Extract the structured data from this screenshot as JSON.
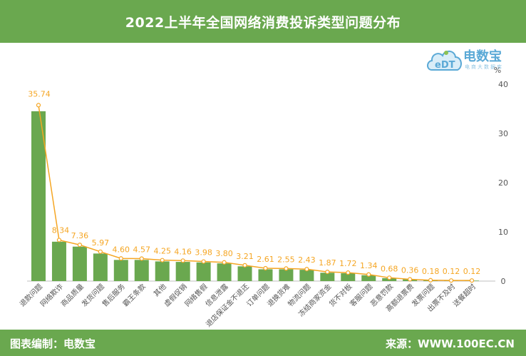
{
  "header": {
    "title": "2022上半年全国网络消费投诉类型问题分布"
  },
  "logo": {
    "name": "电数宝",
    "letters": "eDT",
    "sub": "电商大数据库"
  },
  "footer": {
    "credit": "图表编制：电数宝",
    "source": "来源：WWW.100EC.CN"
  },
  "colors": {
    "bar": "#6aa84f",
    "line": "#f5a623",
    "label": "#f5a623",
    "header": "#6aa84f"
  },
  "chart_data": {
    "type": "bar",
    "title": "2022上半年全国网络消费投诉类型问题分布",
    "unit_label": "%",
    "ylim": [
      0,
      40
    ],
    "yticks": [
      0,
      10,
      20,
      30,
      40
    ],
    "y_axis_side": "right",
    "categories": [
      "退款问题",
      "网络欺诈",
      "商品质量",
      "发货问题",
      "售后服务",
      "霸王条款",
      "其他",
      "虚假促销",
      "网络售假",
      "信息泄露",
      "退店保证金不退还",
      "订单问题",
      "退换货难",
      "物流问题",
      "冻结商家资金",
      "货不对板",
      "客服问题",
      "恶意罚款",
      "高额退票费",
      "发票问题",
      "出票不及时",
      "送餐超时"
    ],
    "values": [
      34.5,
      8.0,
      7.0,
      5.6,
      4.3,
      4.3,
      4.0,
      3.9,
      3.8,
      3.6,
      3.0,
      2.4,
      2.4,
      2.3,
      1.7,
      1.6,
      1.2,
      0.6,
      0.35,
      0.15,
      0.1,
      0.1
    ],
    "line_values": [
      35.74,
      8.34,
      7.36,
      5.97,
      4.6,
      4.57,
      4.25,
      4.16,
      3.98,
      3.8,
      3.21,
      2.61,
      2.55,
      2.43,
      1.87,
      1.72,
      1.34,
      0.68,
      0.36,
      0.18,
      0.12,
      0.12
    ],
    "data_labels": [
      "35.74",
      "8.34",
      "7.36",
      "5.97",
      "4.60",
      "4.57",
      "4.25",
      "4.16",
      "3.98",
      "3.80",
      "3.21",
      "2.61",
      "2.55",
      "2.43",
      "1.87",
      "1.72",
      "1.34",
      "0.68",
      "0.36",
      "0.18",
      "0.12",
      "0.12"
    ],
    "grid": false,
    "legend": "none"
  }
}
